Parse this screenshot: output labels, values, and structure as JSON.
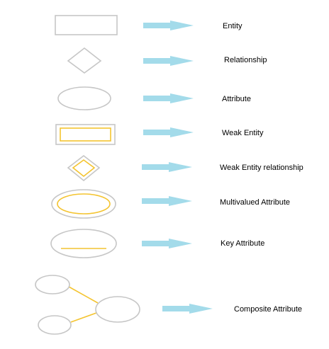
{
  "colors": {
    "outline": "#c6c6c6",
    "accent": "#f4c430",
    "arrow": "#a3dbea"
  },
  "legend": {
    "items": [
      {
        "shape": "rectangle",
        "label": "Entity"
      },
      {
        "shape": "diamond",
        "label": "Relationship"
      },
      {
        "shape": "ellipse",
        "label": "Attribute"
      },
      {
        "shape": "double-rectangle",
        "label": "Weak Entity"
      },
      {
        "shape": "double-diamond",
        "label": "Weak Entity relationship"
      },
      {
        "shape": "double-ellipse",
        "label": "Multivalued Attribute"
      },
      {
        "shape": "underlined-ellipse",
        "label": "Key Attribute"
      },
      {
        "shape": "composite-ellipses",
        "label": "Composite Attribute"
      }
    ]
  }
}
